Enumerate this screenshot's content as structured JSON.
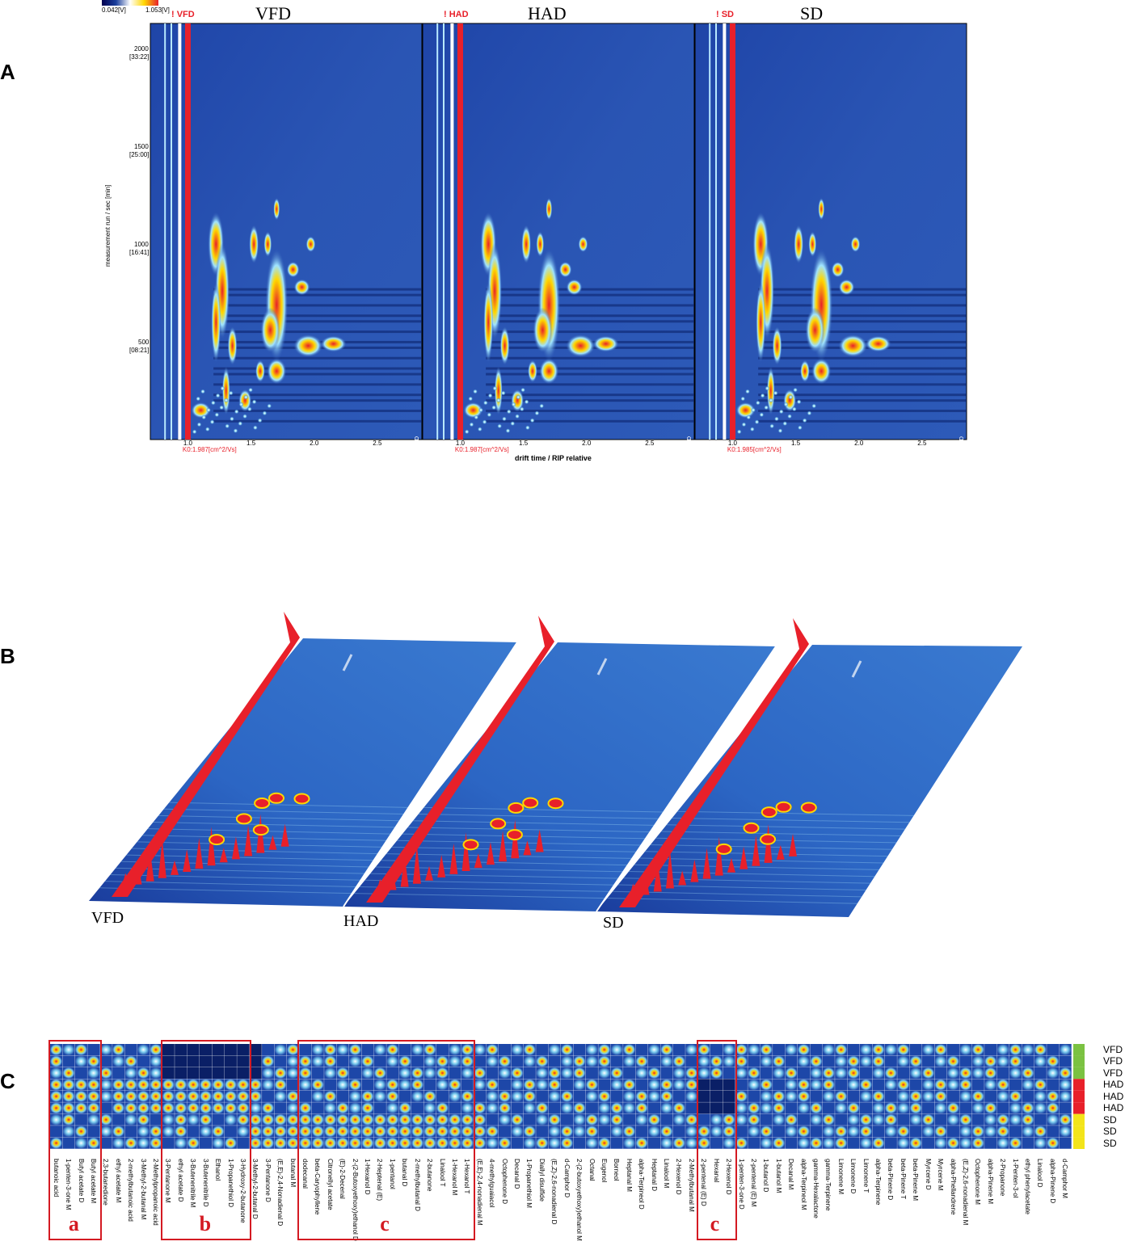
{
  "panels": {
    "A": {
      "letter": "A"
    },
    "B": {
      "letter": "B"
    },
    "C": {
      "letter": "C"
    }
  },
  "chart_data": [
    {
      "type": "heatmap",
      "panel": "A",
      "description_free": true,
      "colorbar": {
        "min_label": "0.042[V]",
        "max_label": "1.053[V]"
      },
      "samples": [
        {
          "title": "VFD",
          "tag": "! VFD",
          "k0": "K0:1.987[cm^2/Vs]",
          "corner": "VFD"
        },
        {
          "title": "HAD",
          "tag": "! HAD",
          "k0": "K0:1.987[cm^2/Vs]",
          "corner": "HAD"
        },
        {
          "title": "SD",
          "tag": "! SD",
          "k0": "K0:1.985[cm^2/Vs]",
          "corner": "SD"
        }
      ],
      "xlabel": "drift time / RIP relative",
      "ylabel": "measurement run / sec [min]",
      "x_ticks": [
        "1.0",
        "1.5",
        "2.0",
        "2.5"
      ],
      "xlim": [
        0.7,
        2.85
      ],
      "y_ticks": [
        {
          "value": 2000,
          "label": "2000",
          "sub": "[33:22]"
        },
        {
          "value": 1500,
          "label": "1500",
          "sub": "[25:00]"
        },
        {
          "value": 1000,
          "label": "1000",
          "sub": "[16:41]"
        },
        {
          "value": 500,
          "label": "500",
          "sub": "[08:21]"
        }
      ],
      "ylim": [
        0,
        2130
      ]
    },
    {
      "type": "heatmap",
      "panel": "B",
      "view": "3d",
      "sample_labels": [
        "VFD",
        "HAD",
        "SD"
      ]
    },
    {
      "type": "heatmap",
      "panel": "C",
      "rows": [
        "VFD",
        "VFD",
        "VFD",
        "HAD",
        "HAD",
        "HAD",
        "SD",
        "SD",
        "SD"
      ],
      "row_colors": {
        "VFD": "#7bc242",
        "HAD": "#e8202a",
        "SD": "#f3e41a"
      },
      "columns": [
        "butanoic acid",
        "1-penten-3-one M",
        "Butyl acetate D",
        "Butyl acetate M",
        "2,3-butanedione",
        "ethyl acetate M",
        "2-methylbutanoic acid",
        "3-Methyl-2-butanal M",
        "2-Methylpropanoic acid",
        "3-Pentanone M",
        "ethyl acetate D",
        "3-Butenenitrile M",
        "3-Butenenitrile D",
        "Ethanol",
        "1-Propanethiol D",
        "3-Hydroxy-2-butanone",
        "3-Methyl-2-butanal D",
        "3-Pentanone D",
        "(E,E)-2,4-Nonadienal D",
        "butanal M",
        "dodecanal",
        "beta-Caryophyllene",
        "Citronellyl acetate",
        "(E)-2-Decenal",
        "2-(2-Butoxyethoxy)ethanol D",
        "1-Hexanol D",
        "2-Heptenal (E)",
        "1-pentanol",
        "butanal D",
        "2-methylbutanal D",
        "2-butanone",
        "Linalool T",
        "1-Hexanol M",
        "1-Hexanol T",
        "(E,E)-2,4-nonadienal M",
        "4-methylguaiacol",
        "Octophenone D",
        "Decanal D",
        "1-Propanethiol M",
        "Diallyl disulfide",
        "(E,Z)-2,6-nonadienal D",
        "d-Camphor D",
        "2-(2-butoxyethoxy)ethanol M",
        "Octanal",
        "Eugenol",
        "Borneol",
        "Heptanal M",
        "alpha-Terpineol D",
        "Heptanal D",
        "Linalool M",
        "2-Hexenol D",
        "2-Methylbutanal M",
        "2-pentenal (E) D",
        "Hexanal",
        "2-Hexenol D",
        "1-penten-3-one D",
        "2-pentenal (E) M",
        "1-butanol D",
        "1-butanol M",
        "Decanal M",
        "alpha-Terpineol M",
        "gamma-Hexalactone",
        "gamma-Terpinene",
        "Limonene M",
        "Limonene D",
        "Limonene T",
        "alpha-Terpinene",
        "beta-Pinene D",
        "beta-Pinene T",
        "beta-Pinene M",
        "Myrcene D",
        "Myrcene M",
        "alpha-Phellandrene",
        "(E,Z)-2,6-nonadienal M",
        "Octophenone M",
        "alpha-Pinene M",
        "2-Propanone",
        "1-Penten-3-ol",
        "ethyl phenylacetate",
        "Linalool D",
        "alpha-Pinene D",
        "d-Camphor M"
      ],
      "highlight_boxes": [
        "a",
        "b",
        "c",
        "c"
      ]
    }
  ]
}
